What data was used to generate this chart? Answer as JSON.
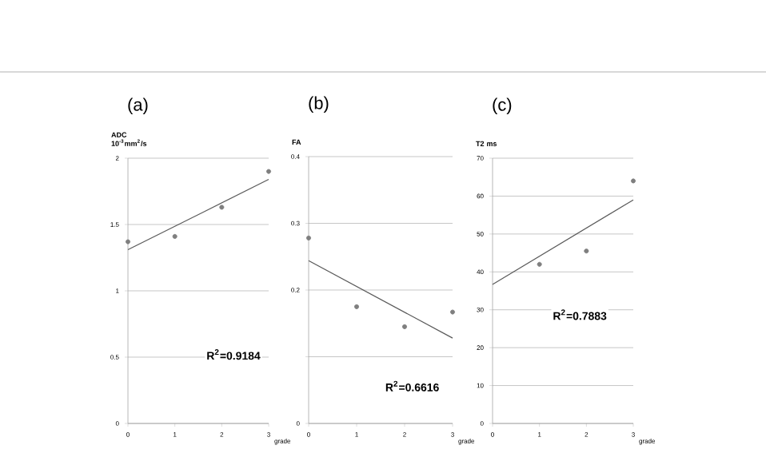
{
  "chart_data": [
    {
      "type": "scatter",
      "title": "(a)",
      "ylabel": "ADC 10$^{-3}$mm$^{2}$/s",
      "xlabel": "grade",
      "xlim": [
        0,
        3
      ],
      "xticks": [
        0,
        1,
        2,
        3
      ],
      "ylim": [
        0,
        2
      ],
      "yticks": [
        0,
        0.5,
        1,
        1.5,
        2
      ],
      "grid": "y",
      "marker": "circle",
      "series": [
        {
          "color": "#7f7f7f",
          "x": [
            0,
            1,
            2,
            3
          ],
          "values": [
            1.37,
            1.41,
            1.63,
            1.9
          ]
        },
        {
          "type": "line",
          "color": "#595959",
          "x": [
            0,
            3
          ],
          "values": [
            1.31,
            1.84
          ],
          "marker": "none"
        }
      ],
      "annotations": [
        "R$^{2}$=0.9184"
      ]
    },
    {
      "type": "scatter",
      "title": "(b)",
      "ylabel": "FA",
      "xlabel": "grade",
      "xlim": [
        0,
        3
      ],
      "xticks": [
        0,
        1,
        2,
        3
      ],
      "ylim": [
        0,
        0.4
      ],
      "yticks": [
        0,
        {
          "value": 0.1,
          "label": null
        },
        0.2,
        0.3,
        0.4
      ],
      "grid": "y",
      "marker": "circle",
      "series": [
        {
          "color": "#7f7f7f",
          "x": [
            0,
            1,
            2,
            3
          ],
          "values": [
            0.278,
            0.175,
            0.145,
            0.167
          ]
        },
        {
          "type": "line",
          "color": "#595959",
          "x": [
            0,
            3
          ],
          "values": [
            0.244,
            0.128
          ],
          "marker": "none"
        }
      ],
      "annotations": [
        "R$^{2}$=0.6616"
      ]
    },
    {
      "type": "scatter",
      "title": "(c)",
      "ylabel": "T2 ms",
      "xlabel": "grade",
      "xlim": [
        0,
        3
      ],
      "xticks": [
        0,
        1,
        2,
        3
      ],
      "ylim": [
        0,
        70
      ],
      "yticks": [
        0,
        10,
        20,
        30,
        40,
        50,
        60,
        70
      ],
      "grid": "y",
      "marker": "circle",
      "series": [
        {
          "color": "#7f7f7f",
          "x": [
            1,
            2,
            3
          ],
          "values": [
            42,
            45.5,
            64
          ]
        },
        {
          "type": "line",
          "color": "#595959",
          "x": [
            0,
            3
          ],
          "values": [
            36.7,
            59
          ],
          "marker": "none"
        }
      ],
      "annotations": [
        "R$^{2}$=0.7883"
      ]
    }
  ]
}
